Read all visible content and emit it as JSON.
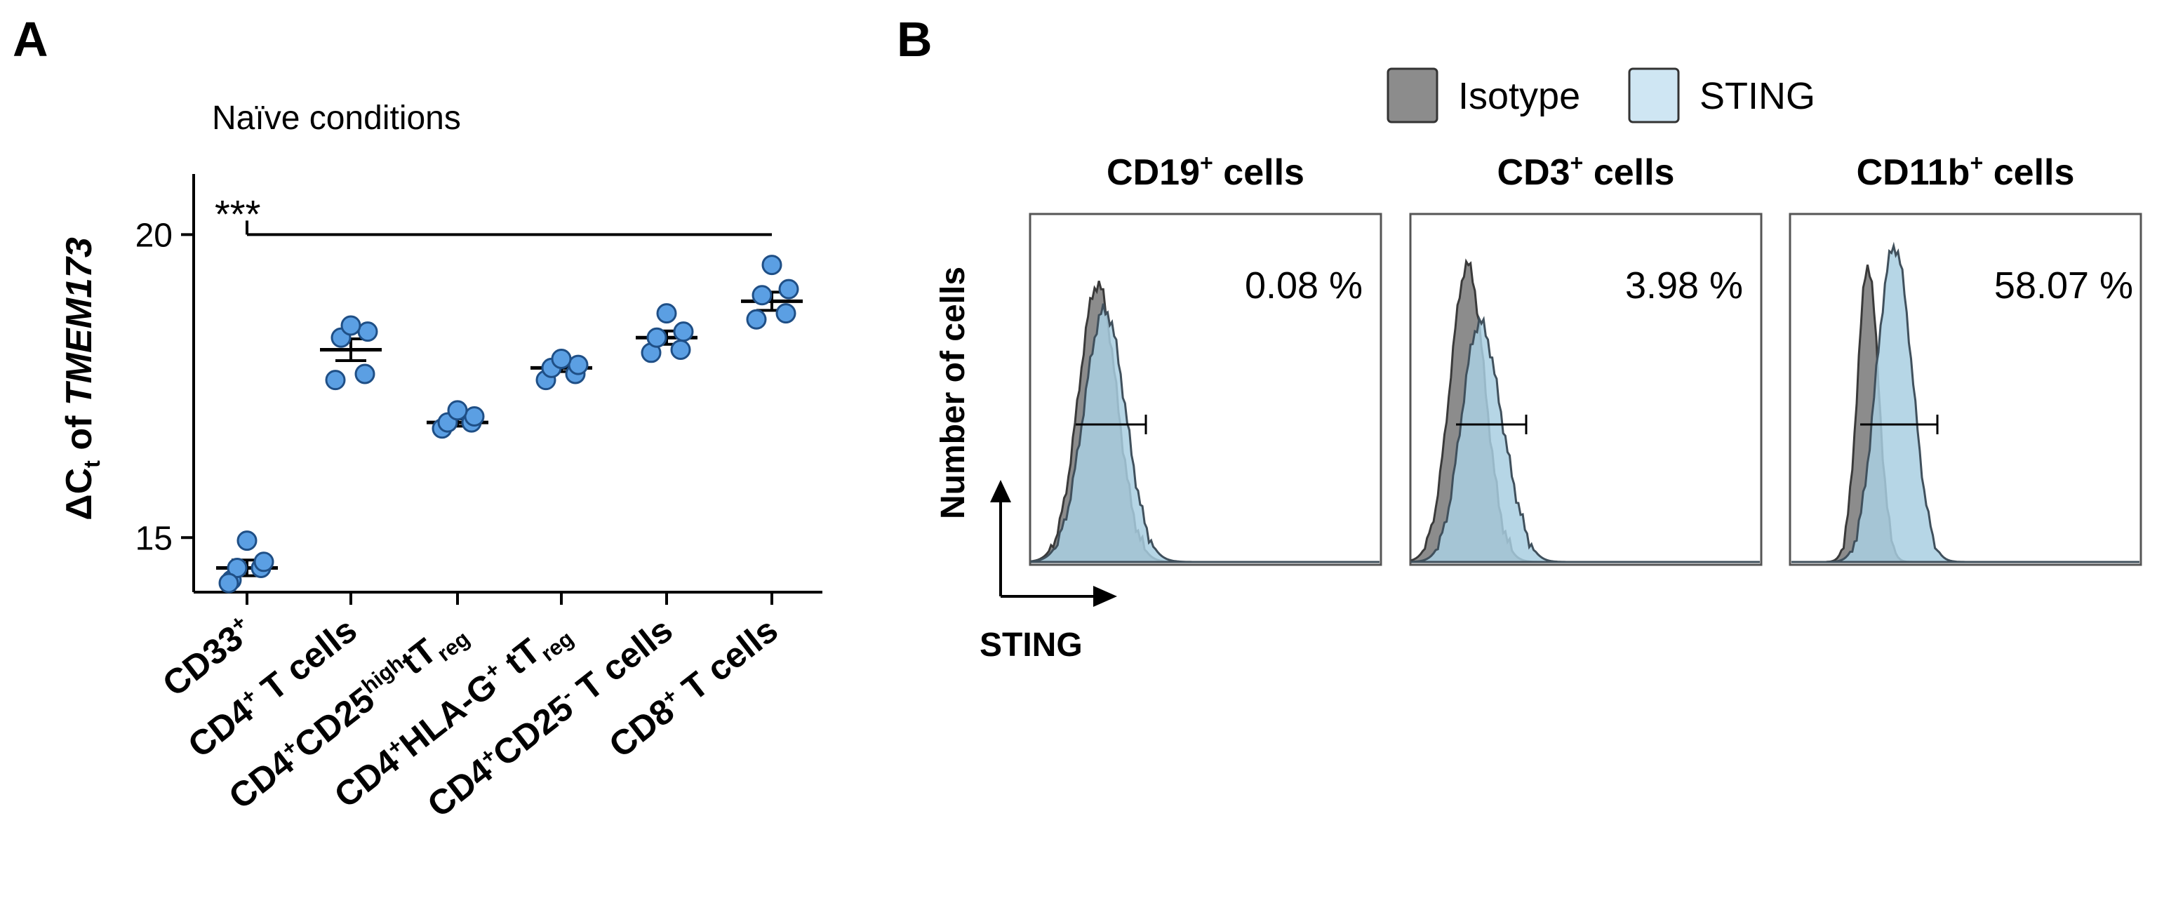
{
  "figure": {
    "panel_a_label": "A",
    "panel_b_label": "B"
  },
  "chart_data": [
    {
      "type": "scatter",
      "panel": "A",
      "title": "Naïve conditions",
      "ylabel_prefix": "ΔC",
      "ylabel_sub": "t",
      "ylabel_mid": " of ",
      "ylabel_gene": "TMEM173",
      "ylim": [
        14.1,
        21.0
      ],
      "yticks": [
        15,
        20
      ],
      "significance": {
        "label": "***",
        "from_category": 0,
        "to_category": 5,
        "y_value": 20.0
      },
      "marker_color": "#5b9fe3",
      "categories": [
        {
          "base": "CD33",
          "sup": "+",
          "mid": "",
          "sup2": "",
          "tail": ""
        },
        {
          "base": "CD4",
          "sup": "+",
          "mid": " T cells",
          "sup2": "",
          "tail": ""
        },
        {
          "base": "CD4",
          "sup": "+",
          "mid": "CD25",
          "sup2": "high",
          "tail": "tT",
          "sub": "reg"
        },
        {
          "base": "CD4",
          "sup": "+",
          "mid": "HLA-G",
          "sup2": "+",
          "tail": " tT",
          "sub": "reg"
        },
        {
          "base": "CD4",
          "sup": "+",
          "mid": "CD25",
          "sup2": "-",
          "tail": " T cells"
        },
        {
          "base": "CD8",
          "sup": "+",
          "mid": " T cells",
          "sup2": "",
          "tail": ""
        }
      ],
      "points": [
        [
          14.3,
          14.5,
          14.5,
          14.6,
          14.95,
          14.25
        ],
        [
          17.6,
          17.7,
          18.3,
          18.4,
          18.5
        ],
        [
          16.8,
          16.9,
          16.9,
          17.0,
          17.1
        ],
        [
          17.6,
          17.7,
          17.8,
          17.85,
          17.95
        ],
        [
          18.05,
          18.1,
          18.3,
          18.4,
          18.7
        ],
        [
          18.6,
          18.7,
          19.0,
          19.1,
          19.5
        ]
      ],
      "mean": [
        14.5,
        18.1,
        16.9,
        17.8,
        18.3,
        18.9
      ],
      "sem": [
        0.13,
        0.18,
        0.06,
        0.06,
        0.11,
        0.15
      ]
    },
    {
      "type": "area",
      "panel": "B",
      "legend": [
        {
          "label": "Isotype",
          "color": "#8c8c8c"
        },
        {
          "label": "STING",
          "color": "#cfe6f3"
        }
      ],
      "xlabel": "STING",
      "ylabel": "Number of cells",
      "histograms": [
        {
          "title_base": "CD19",
          "title_sup": "+",
          "title_tail": " cells",
          "percent": "0.08 %"
        },
        {
          "title_base": "CD3",
          "title_sup": "+",
          "title_tail": " cells",
          "percent": "3.98 %"
        },
        {
          "title_base": "CD11b",
          "title_sup": "+",
          "title_tail": " cells",
          "percent": "58.07 %"
        }
      ]
    }
  ]
}
